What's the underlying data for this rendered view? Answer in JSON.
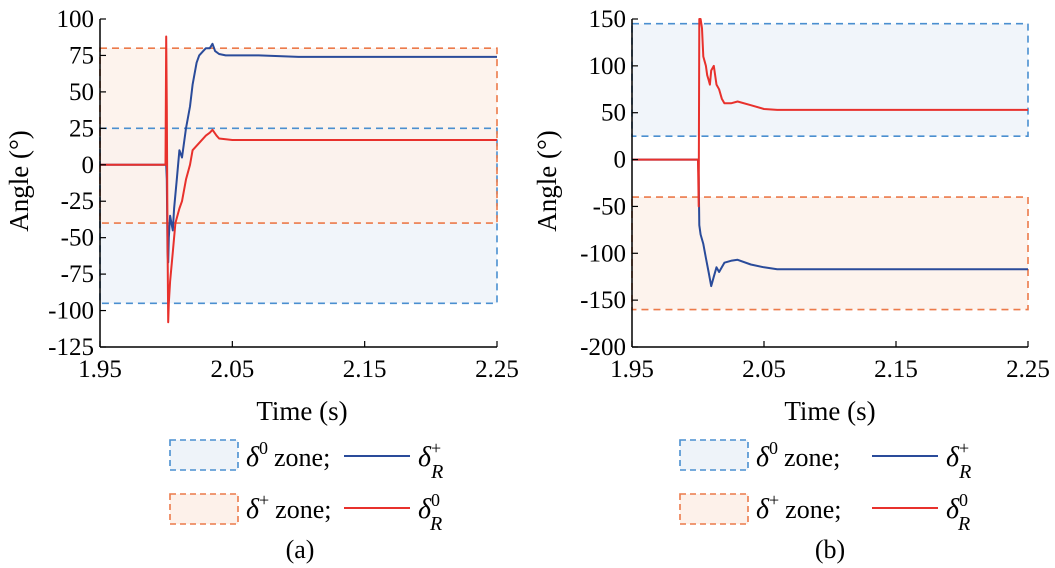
{
  "chart_data": [
    {
      "type": "line",
      "panel_label": "(a)",
      "xlabel": "Time (s)",
      "ylabel": "Angle (°)",
      "xlim": [
        1.95,
        2.25
      ],
      "ylim": [
        -125,
        100
      ],
      "xticks": [
        "1.95",
        "2.05",
        "2.15",
        "2.25"
      ],
      "yticks": [
        "100",
        "75",
        "50",
        "25",
        "0",
        "-25",
        "-50",
        "-75",
        "-100",
        "-125"
      ],
      "zones": [
        {
          "name": "δ0 zone",
          "color": "#4a8fd0",
          "fill": "#eef3f9",
          "range": [
            -95,
            25
          ]
        },
        {
          "name": "δ+ zone",
          "color": "#ec7a4a",
          "fill": "#fdf1ea",
          "range": [
            -40,
            80
          ]
        }
      ],
      "series": [
        {
          "name": "δR+",
          "color": "#2a4b9a",
          "x": [
            1.95,
            2.0,
            2.0005,
            2.001,
            2.0015,
            2.002,
            2.003,
            2.005,
            2.006,
            2.008,
            2.01,
            2.012,
            2.015,
            2.018,
            2.02,
            2.023,
            2.025,
            2.028,
            2.03,
            2.033,
            2.035,
            2.037,
            2.04,
            2.045,
            2.05,
            2.07,
            2.1,
            2.25
          ],
          "y": [
            0,
            0,
            -10,
            -60,
            -67,
            -50,
            -35,
            -45,
            -30,
            -10,
            10,
            5,
            25,
            40,
            55,
            70,
            75,
            78,
            80,
            80,
            83,
            78,
            76,
            75,
            75,
            75,
            74,
            74
          ]
        },
        {
          "name": "δR0",
          "color": "#e8312c",
          "x": [
            1.95,
            1.9995,
            2.0,
            2.0005,
            2.001,
            2.0015,
            2.002,
            2.003,
            2.005,
            2.007,
            2.01,
            2.012,
            2.015,
            2.018,
            2.02,
            2.025,
            2.03,
            2.033,
            2.035,
            2.038,
            2.04,
            2.05,
            2.1,
            2.25
          ],
          "y": [
            0,
            0,
            88,
            40,
            -50,
            -108,
            -95,
            -80,
            -60,
            -40,
            -30,
            -25,
            -10,
            0,
            10,
            15,
            20,
            22,
            24,
            20,
            18,
            17,
            17,
            17
          ]
        }
      ]
    },
    {
      "type": "line",
      "panel_label": "(b)",
      "xlabel": "Time (s)",
      "ylabel": "Angle (°)",
      "xlim": [
        1.95,
        2.25
      ],
      "ylim": [
        -200,
        150
      ],
      "xticks": [
        "1.95",
        "2.05",
        "2.15",
        "2.25"
      ],
      "yticks": [
        "150",
        "100",
        "50",
        "0",
        "-50",
        "-100",
        "-150",
        "-200"
      ],
      "zones": [
        {
          "name": "δ0 zone",
          "color": "#4a8fd0",
          "fill": "#eef3f9",
          "range": [
            25,
            145
          ]
        },
        {
          "name": "δ+ zone",
          "color": "#ec7a4a",
          "fill": "#fdf1ea",
          "range": [
            -160,
            -40
          ]
        }
      ],
      "series": [
        {
          "name": "δR+",
          "color": "#2a4b9a",
          "x": [
            1.95,
            2.0,
            2.0005,
            2.001,
            2.002,
            2.004,
            2.006,
            2.008,
            2.01,
            2.012,
            2.014,
            2.016,
            2.018,
            2.02,
            2.025,
            2.03,
            2.04,
            2.05,
            2.06,
            2.07,
            2.1,
            2.25
          ],
          "y": [
            0,
            0,
            -20,
            -70,
            -80,
            -90,
            -105,
            -120,
            -135,
            -125,
            -115,
            -120,
            -115,
            -110,
            -108,
            -107,
            -112,
            -115,
            -117,
            -117,
            -117,
            -117
          ]
        },
        {
          "name": "δR0",
          "color": "#e8312c",
          "x": [
            1.95,
            2.0,
            2.0005,
            2.001,
            2.002,
            2.003,
            2.004,
            2.005,
            2.006,
            2.007,
            2.008,
            2.009,
            2.01,
            2.012,
            2.014,
            2.016,
            2.018,
            2.02,
            2.025,
            2.03,
            2.04,
            2.05,
            2.06,
            2.07,
            2.1,
            2.25
          ],
          "y": [
            0,
            0,
            -50,
            150,
            150,
            140,
            110,
            105,
            100,
            90,
            85,
            80,
            95,
            100,
            80,
            75,
            65,
            60,
            60,
            62,
            58,
            54,
            53,
            53,
            53,
            53
          ]
        }
      ]
    }
  ],
  "legend": {
    "zone0_label": "zone;",
    "zoneplus_label": "zone;",
    "delta": "δ",
    "sup0": "0",
    "supplus": "+",
    "subR": "R"
  }
}
